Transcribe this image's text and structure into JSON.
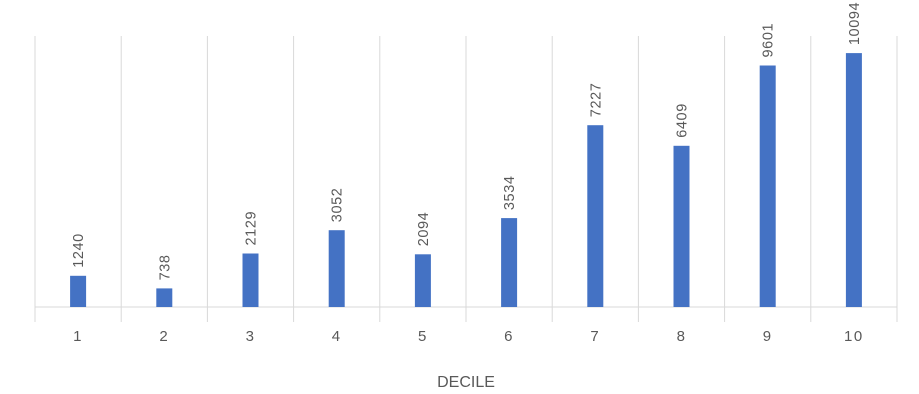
{
  "chart_data": {
    "type": "bar",
    "categories": [
      "1",
      "2",
      "3",
      "4",
      "5",
      "6",
      "7",
      "8",
      "9",
      "10"
    ],
    "values": [
      1240,
      738,
      2129,
      3052,
      2094,
      3534,
      7227,
      6409,
      9601,
      10094
    ],
    "data_labels": [
      "1240",
      "738",
      "2129",
      "3052",
      "2094",
      "3534",
      "7227",
      "6409",
      "9601",
      "10094"
    ],
    "title": "",
    "xlabel": "DECILE",
    "ylabel": "",
    "ylim": [
      0,
      12000
    ],
    "grid": "vertical",
    "legend": "none",
    "colors": {
      "bar": "#4472C4",
      "grid": "#D9D9D9",
      "text": "#595959"
    }
  }
}
